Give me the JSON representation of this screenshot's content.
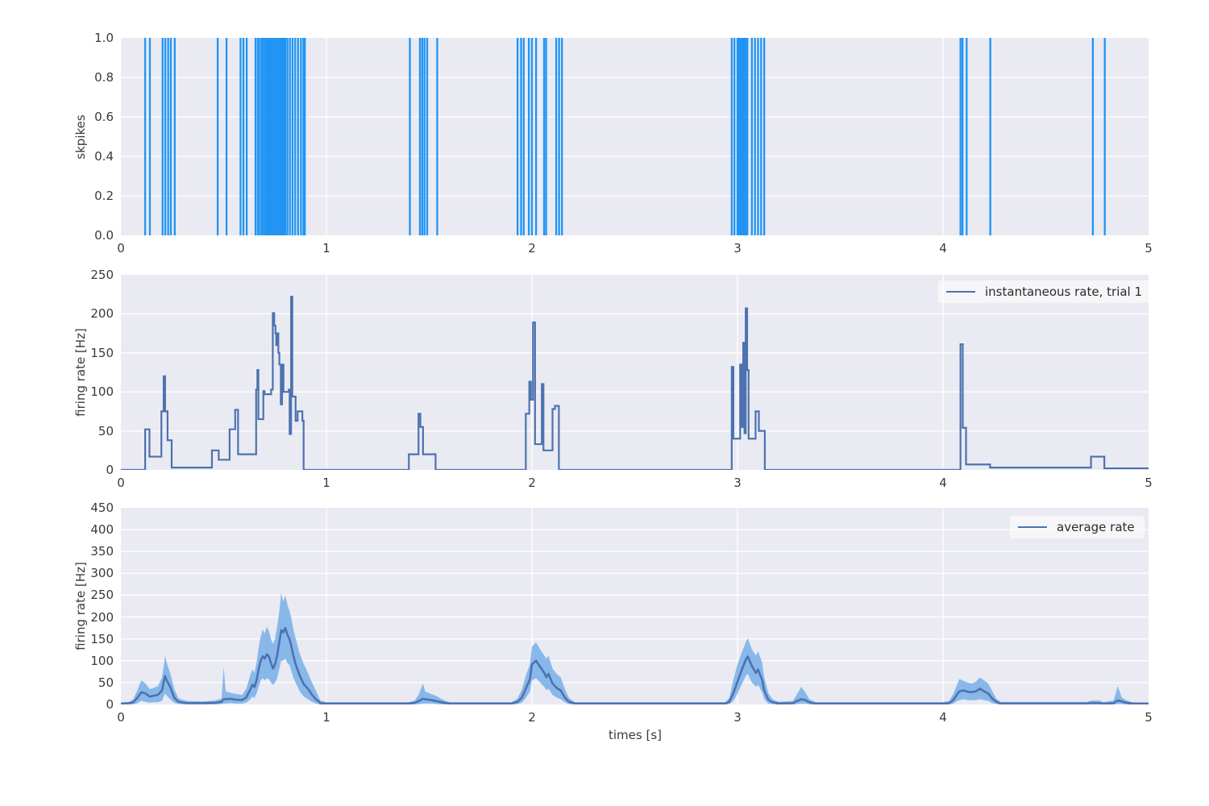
{
  "style": {
    "figure_bg": "#ffffff",
    "axes_bg": "#eaeaf2",
    "grid_color": "#ffffff",
    "tick_color": "#3a3a3a",
    "spike_color": "#2094f5",
    "line_color": "#4c72b0",
    "band_color": "#7db3e9",
    "band_opacity": 0.9
  },
  "chart_data": [
    {
      "type": "raster",
      "title": "",
      "ylabel": "skpikes",
      "xlabel": "",
      "xlim": [
        0,
        5
      ],
      "ylim": [
        0.0,
        1.0
      ],
      "xticks": [
        0,
        1,
        2,
        3,
        4,
        5
      ],
      "xtick_labels": [
        "0",
        "1",
        "2",
        "3",
        "4",
        "5"
      ],
      "yticks": [
        0.0,
        0.2,
        0.4,
        0.6,
        0.8,
        1.0
      ],
      "ytick_labels": [
        "0.0",
        "0.2",
        "0.4",
        "0.6",
        "0.8",
        "1.0"
      ],
      "grid": true,
      "spike_times": [
        0.118,
        0.141,
        0.203,
        0.216,
        0.23,
        0.243,
        0.262,
        0.471,
        0.514,
        0.582,
        0.596,
        0.612,
        0.655,
        0.666,
        0.676,
        0.686,
        0.695,
        0.704,
        0.712,
        0.72,
        0.728,
        0.736,
        0.744,
        0.752,
        0.76,
        0.768,
        0.776,
        0.784,
        0.792,
        0.8,
        0.81,
        0.822,
        0.835,
        0.848,
        0.862,
        0.876,
        0.888,
        0.895,
        1.406,
        1.455,
        1.466,
        1.477,
        1.49,
        1.539,
        1.93,
        1.947,
        1.96,
        1.985,
        2.0,
        2.02,
        2.059,
        2.069,
        2.118,
        2.132,
        2.146,
        2.972,
        2.985,
        3.0,
        3.008,
        3.016,
        3.024,
        3.032,
        3.04,
        3.048,
        3.07,
        3.085,
        3.1,
        3.115,
        3.13,
        4.085,
        4.095,
        4.115,
        4.23,
        4.729,
        4.787
      ]
    },
    {
      "type": "step",
      "title": "",
      "legend": "instantaneous rate, trial 1",
      "legend_position": "upper right",
      "ylabel": "firing rate [Hz]",
      "xlabel": "",
      "xlim": [
        0,
        5
      ],
      "ylim": [
        0,
        250
      ],
      "xticks": [
        0,
        1,
        2,
        3,
        4,
        5
      ],
      "xtick_labels": [
        "0",
        "1",
        "2",
        "3",
        "4",
        "5"
      ],
      "yticks": [
        0,
        50,
        100,
        150,
        200,
        250
      ],
      "ytick_labels": [
        "0",
        "50",
        "100",
        "150",
        "200",
        "250"
      ],
      "grid": true,
      "steps": [
        [
          0.0,
          0
        ],
        [
          0.118,
          52
        ],
        [
          0.139,
          17
        ],
        [
          0.197,
          75
        ],
        [
          0.208,
          120
        ],
        [
          0.215,
          75
        ],
        [
          0.227,
          38
        ],
        [
          0.247,
          3
        ],
        [
          0.443,
          25
        ],
        [
          0.476,
          13
        ],
        [
          0.529,
          52
        ],
        [
          0.556,
          77
        ],
        [
          0.57,
          20
        ],
        [
          0.658,
          103
        ],
        [
          0.664,
          128
        ],
        [
          0.669,
          65
        ],
        [
          0.693,
          101
        ],
        [
          0.699,
          97
        ],
        [
          0.731,
          103
        ],
        [
          0.739,
          201
        ],
        [
          0.746,
          185
        ],
        [
          0.752,
          175
        ],
        [
          0.756,
          160
        ],
        [
          0.762,
          175
        ],
        [
          0.766,
          150
        ],
        [
          0.771,
          135
        ],
        [
          0.778,
          84
        ],
        [
          0.784,
          135
        ],
        [
          0.791,
          100
        ],
        [
          0.817,
          103
        ],
        [
          0.821,
          46
        ],
        [
          0.828,
          222
        ],
        [
          0.834,
          94
        ],
        [
          0.85,
          63
        ],
        [
          0.86,
          75
        ],
        [
          0.883,
          63
        ],
        [
          0.889,
          0
        ],
        [
          1.401,
          20
        ],
        [
          1.448,
          72
        ],
        [
          1.457,
          55
        ],
        [
          1.47,
          20
        ],
        [
          1.531,
          0
        ],
        [
          1.97,
          72
        ],
        [
          1.987,
          113
        ],
        [
          1.995,
          90
        ],
        [
          2.005,
          189
        ],
        [
          2.015,
          33
        ],
        [
          2.048,
          110
        ],
        [
          2.056,
          25
        ],
        [
          2.1,
          78
        ],
        [
          2.112,
          82
        ],
        [
          2.131,
          0
        ],
        [
          2.972,
          132
        ],
        [
          2.98,
          40
        ],
        [
          3.013,
          135
        ],
        [
          3.021,
          55
        ],
        [
          3.028,
          163
        ],
        [
          3.034,
          47
        ],
        [
          3.04,
          207
        ],
        [
          3.047,
          128
        ],
        [
          3.054,
          40
        ],
        [
          3.088,
          75
        ],
        [
          3.104,
          50
        ],
        [
          3.133,
          0
        ],
        [
          4.085,
          161
        ],
        [
          4.096,
          54
        ],
        [
          4.112,
          7
        ],
        [
          4.229,
          3
        ],
        [
          4.72,
          17
        ],
        [
          4.785,
          2
        ],
        [
          5.0,
          2
        ]
      ]
    },
    {
      "type": "area",
      "title": "",
      "legend": "average rate",
      "legend_position": "upper right",
      "ylabel": "firing rate [Hz]",
      "xlabel": "times [s]",
      "xlim": [
        0,
        5
      ],
      "ylim": [
        0,
        450
      ],
      "xticks": [
        0,
        1,
        2,
        3,
        4,
        5
      ],
      "xtick_labels": [
        "0",
        "1",
        "2",
        "3",
        "4",
        "5"
      ],
      "yticks": [
        0,
        50,
        100,
        150,
        200,
        250,
        300,
        350,
        400,
        450
      ],
      "ytick_labels": [
        "0",
        "50",
        "100",
        "150",
        "200",
        "250",
        "300",
        "350",
        "400",
        "450"
      ],
      "grid": true,
      "points_format": [
        "time",
        "lower",
        "mean",
        "upper"
      ],
      "points": [
        [
          0.0,
          0,
          2,
          4
        ],
        [
          0.04,
          0,
          3,
          6
        ],
        [
          0.06,
          0,
          5,
          12
        ],
        [
          0.08,
          3,
          15,
          32
        ],
        [
          0.09,
          6,
          22,
          45
        ],
        [
          0.1,
          8,
          28,
          55
        ],
        [
          0.12,
          6,
          25,
          48
        ],
        [
          0.14,
          4,
          18,
          35
        ],
        [
          0.16,
          5,
          20,
          38
        ],
        [
          0.18,
          5,
          22,
          42
        ],
        [
          0.2,
          8,
          32,
          62
        ],
        [
          0.21,
          20,
          55,
          92
        ],
        [
          0.215,
          25,
          65,
          113
        ],
        [
          0.22,
          22,
          58,
          100
        ],
        [
          0.24,
          12,
          40,
          72
        ],
        [
          0.26,
          4,
          15,
          35
        ],
        [
          0.28,
          1,
          6,
          14
        ],
        [
          0.32,
          0,
          3,
          8
        ],
        [
          0.4,
          0,
          3,
          7
        ],
        [
          0.46,
          0,
          4,
          9
        ],
        [
          0.49,
          1,
          6,
          14
        ],
        [
          0.5,
          2,
          12,
          85
        ],
        [
          0.51,
          2,
          12,
          30
        ],
        [
          0.53,
          3,
          13,
          27
        ],
        [
          0.56,
          2,
          11,
          24
        ],
        [
          0.59,
          2,
          10,
          22
        ],
        [
          0.61,
          4,
          16,
          36
        ],
        [
          0.63,
          12,
          35,
          68
        ],
        [
          0.64,
          18,
          45,
          80
        ],
        [
          0.65,
          15,
          40,
          72
        ],
        [
          0.66,
          25,
          55,
          95
        ],
        [
          0.67,
          40,
          80,
          130
        ],
        [
          0.68,
          55,
          100,
          155
        ],
        [
          0.69,
          60,
          110,
          172
        ],
        [
          0.7,
          55,
          105,
          162
        ],
        [
          0.71,
          60,
          115,
          178
        ],
        [
          0.72,
          58,
          110,
          168
        ],
        [
          0.73,
          50,
          95,
          150
        ],
        [
          0.74,
          45,
          82,
          138
        ],
        [
          0.75,
          50,
          92,
          150
        ],
        [
          0.76,
          60,
          112,
          178
        ],
        [
          0.77,
          80,
          140,
          210
        ],
        [
          0.78,
          100,
          170,
          255
        ],
        [
          0.79,
          100,
          165,
          235
        ],
        [
          0.8,
          105,
          175,
          250
        ],
        [
          0.81,
          95,
          160,
          228
        ],
        [
          0.82,
          90,
          150,
          215
        ],
        [
          0.83,
          75,
          132,
          196
        ],
        [
          0.84,
          60,
          110,
          170
        ],
        [
          0.85,
          50,
          92,
          152
        ],
        [
          0.87,
          30,
          66,
          116
        ],
        [
          0.89,
          18,
          46,
          92
        ],
        [
          0.91,
          12,
          36,
          72
        ],
        [
          0.93,
          6,
          22,
          50
        ],
        [
          0.95,
          2,
          11,
          30
        ],
        [
          0.96,
          1,
          8,
          20
        ],
        [
          0.97,
          0,
          3,
          9
        ],
        [
          1.0,
          0,
          2,
          5
        ],
        [
          1.4,
          0,
          2,
          5
        ],
        [
          1.43,
          0,
          4,
          9
        ],
        [
          1.45,
          1,
          8,
          24
        ],
        [
          1.47,
          2,
          13,
          48
        ],
        [
          1.48,
          2,
          12,
          30
        ],
        [
          1.51,
          2,
          10,
          24
        ],
        [
          1.54,
          1,
          7,
          18
        ],
        [
          1.57,
          0,
          4,
          10
        ],
        [
          1.6,
          0,
          2,
          5
        ],
        [
          1.9,
          0,
          2,
          5
        ],
        [
          1.93,
          1,
          6,
          14
        ],
        [
          1.95,
          4,
          15,
          33
        ],
        [
          1.97,
          15,
          36,
          66
        ],
        [
          1.99,
          30,
          58,
          92
        ],
        [
          2.0,
          55,
          92,
          132
        ],
        [
          2.02,
          60,
          100,
          142
        ],
        [
          2.04,
          50,
          86,
          126
        ],
        [
          2.06,
          40,
          72,
          112
        ],
        [
          2.07,
          32,
          62,
          105
        ],
        [
          2.08,
          36,
          70,
          112
        ],
        [
          2.1,
          22,
          48,
          82
        ],
        [
          2.12,
          16,
          38,
          70
        ],
        [
          2.14,
          12,
          32,
          62
        ],
        [
          2.16,
          5,
          16,
          36
        ],
        [
          2.18,
          1,
          6,
          15
        ],
        [
          2.21,
          0,
          2,
          5
        ],
        [
          2.94,
          0,
          2,
          5
        ],
        [
          2.96,
          1,
          6,
          15
        ],
        [
          2.98,
          8,
          26,
          56
        ],
        [
          3.0,
          25,
          52,
          92
        ],
        [
          3.02,
          45,
          78,
          118
        ],
        [
          3.04,
          65,
          102,
          142
        ],
        [
          3.05,
          70,
          110,
          152
        ],
        [
          3.07,
          50,
          88,
          126
        ],
        [
          3.09,
          40,
          72,
          112
        ],
        [
          3.1,
          45,
          80,
          122
        ],
        [
          3.12,
          28,
          56,
          96
        ],
        [
          3.13,
          12,
          32,
          62
        ],
        [
          3.15,
          2,
          11,
          26
        ],
        [
          3.17,
          1,
          5,
          12
        ],
        [
          3.2,
          0,
          2,
          6
        ],
        [
          3.27,
          0,
          3,
          8
        ],
        [
          3.29,
          1,
          8,
          24
        ],
        [
          3.31,
          2,
          12,
          40
        ],
        [
          3.33,
          2,
          10,
          28
        ],
        [
          3.35,
          0,
          5,
          12
        ],
        [
          3.38,
          0,
          2,
          5
        ],
        [
          4.0,
          0,
          2,
          5
        ],
        [
          4.03,
          0,
          3,
          8
        ],
        [
          4.05,
          2,
          10,
          24
        ],
        [
          4.07,
          8,
          24,
          48
        ],
        [
          4.08,
          10,
          30,
          58
        ],
        [
          4.1,
          12,
          32,
          54
        ],
        [
          4.12,
          10,
          29,
          50
        ],
        [
          4.14,
          10,
          28,
          48
        ],
        [
          4.16,
          10,
          30,
          52
        ],
        [
          4.18,
          12,
          36,
          62
        ],
        [
          4.2,
          10,
          30,
          55
        ],
        [
          4.22,
          8,
          25,
          48
        ],
        [
          4.24,
          3,
          13,
          30
        ],
        [
          4.26,
          1,
          6,
          13
        ],
        [
          4.28,
          0,
          2,
          6
        ],
        [
          4.7,
          0,
          2,
          6
        ],
        [
          4.72,
          0,
          3,
          9
        ],
        [
          4.76,
          0,
          3,
          9
        ],
        [
          4.78,
          0,
          2,
          5
        ],
        [
          4.83,
          0,
          3,
          9
        ],
        [
          4.85,
          1,
          9,
          42
        ],
        [
          4.87,
          1,
          7,
          16
        ],
        [
          4.89,
          0,
          4,
          10
        ],
        [
          4.92,
          0,
          2,
          5
        ],
        [
          5.0,
          0,
          2,
          4
        ]
      ]
    }
  ]
}
